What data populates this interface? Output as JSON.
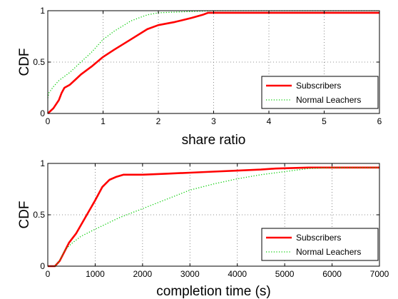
{
  "chart_data": [
    {
      "type": "line",
      "xlabel": "share ratio",
      "ylabel": "CDF",
      "xlim": [
        0,
        6
      ],
      "ylim": [
        0,
        1
      ],
      "xticks": [
        "0",
        "1",
        "2",
        "3",
        "4",
        "5",
        "6"
      ],
      "yticks": [
        "0",
        "0.5",
        "1"
      ],
      "grid": true,
      "legend_position": "bottom-right",
      "series": [
        {
          "name": "Subscribers",
          "color": "#ff0000",
          "style": "solid",
          "x": [
            0,
            0.1,
            0.2,
            0.25,
            0.3,
            0.4,
            0.5,
            0.6,
            0.8,
            1.0,
            1.2,
            1.5,
            1.8,
            2.0,
            2.3,
            2.6,
            2.8,
            2.9,
            3.0,
            4.0,
            6.0
          ],
          "y": [
            0,
            0.05,
            0.13,
            0.2,
            0.25,
            0.28,
            0.33,
            0.38,
            0.46,
            0.55,
            0.62,
            0.72,
            0.82,
            0.86,
            0.89,
            0.93,
            0.96,
            0.98,
            0.98,
            0.98,
            0.98
          ]
        },
        {
          "name": "Normal Leachers",
          "color": "#00cc00",
          "style": "dotted",
          "x": [
            0,
            0.02,
            0.1,
            0.2,
            0.4,
            0.6,
            0.8,
            1.0,
            1.2,
            1.5,
            1.7,
            1.8,
            2.0,
            2.5,
            3.0,
            6.0
          ],
          "y": [
            0.15,
            0.2,
            0.26,
            0.32,
            0.4,
            0.5,
            0.6,
            0.72,
            0.8,
            0.9,
            0.94,
            0.96,
            0.98,
            0.99,
            1.0,
            1.0
          ]
        }
      ]
    },
    {
      "type": "line",
      "xlabel": "completion time (s)",
      "ylabel": "CDF",
      "xlim": [
        0,
        7000
      ],
      "ylim": [
        0,
        1
      ],
      "xticks": [
        "0",
        "1000",
        "2000",
        "3000",
        "4000",
        "5000",
        "6000",
        "7000"
      ],
      "yticks": [
        "0",
        "0.5",
        "1"
      ],
      "grid": true,
      "legend_position": "bottom-right",
      "series": [
        {
          "name": "Subscribers",
          "color": "#ff0000",
          "style": "solid",
          "x": [
            0,
            150,
            250,
            350,
            450,
            600,
            800,
            1000,
            1150,
            1300,
            1450,
            1600,
            2000,
            2500,
            3000,
            3500,
            4000,
            4500,
            4800,
            5500,
            6000,
            7000
          ],
          "y": [
            0,
            0,
            0.05,
            0.14,
            0.23,
            0.32,
            0.48,
            0.64,
            0.77,
            0.84,
            0.87,
            0.89,
            0.89,
            0.9,
            0.91,
            0.92,
            0.93,
            0.94,
            0.95,
            0.96,
            0.96,
            0.96
          ]
        },
        {
          "name": "Normal Leachers",
          "color": "#00cc00",
          "style": "dotted",
          "x": [
            0,
            150,
            250,
            350,
            500,
            700,
            1000,
            1500,
            2000,
            2500,
            3000,
            3500,
            4000,
            4500,
            5000,
            5500,
            6000,
            7000
          ],
          "y": [
            0,
            0,
            0.05,
            0.15,
            0.22,
            0.29,
            0.36,
            0.47,
            0.56,
            0.65,
            0.74,
            0.8,
            0.85,
            0.89,
            0.92,
            0.95,
            0.96,
            0.96
          ]
        }
      ]
    }
  ]
}
